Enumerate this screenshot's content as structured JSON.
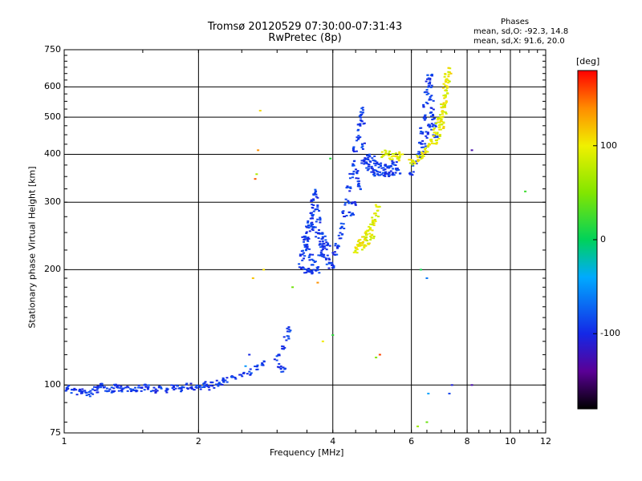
{
  "chart_data": {
    "type": "scatter",
    "title": "Tromsø 20120529 07:30:00-07:31:43",
    "subtitle": "RwPretec (8p)",
    "xlabel": "Frequency [MHz]",
    "ylabel": "Stationary phase Virtual Height [km]",
    "xscale": "log",
    "yscale": "log",
    "xlim": [
      1,
      12
    ],
    "ylim": [
      75,
      750
    ],
    "x_ticks": [
      "1",
      "2",
      "4",
      "6",
      "8",
      "10",
      "12"
    ],
    "x_tick_values": [
      1,
      2,
      4,
      6,
      8,
      10,
      12
    ],
    "y_ticks": [
      "75",
      "100",
      "200",
      "300",
      "400",
      "500",
      "600",
      "750"
    ],
    "y_tick_values": [
      75,
      100,
      200,
      300,
      400,
      500,
      600,
      750
    ],
    "grid": true,
    "info_box": {
      "heading": "Phases",
      "line1": "mean, sd,O: -92.3, 14.8",
      "line2": "mean, sd,X:  91.6, 20.0"
    },
    "colorbar": {
      "label": "[deg]",
      "range": [
        -180,
        180
      ],
      "ticks": [
        "100",
        "0",
        "-100"
      ],
      "tick_values": [
        100,
        0,
        -100
      ]
    },
    "series": [
      {
        "mode": "O",
        "phase_mean": -92.3,
        "points": [
          [
            1.02,
            98
          ],
          [
            1.05,
            97
          ],
          [
            1.08,
            96
          ],
          [
            1.1,
            96
          ],
          [
            1.13,
            95
          ],
          [
            1.16,
            96
          ],
          [
            1.18,
            97
          ],
          [
            1.2,
            98
          ],
          [
            1.22,
            99
          ],
          [
            1.25,
            98
          ],
          [
            1.28,
            97
          ],
          [
            1.3,
            99
          ],
          [
            1.33,
            98
          ],
          [
            1.36,
            97
          ],
          [
            1.4,
            98
          ],
          [
            1.44,
            97
          ],
          [
            1.48,
            98
          ],
          [
            1.52,
            99
          ],
          [
            1.56,
            98
          ],
          [
            1.6,
            97
          ],
          [
            1.65,
            98
          ],
          [
            1.7,
            97
          ],
          [
            1.75,
            98
          ],
          [
            1.8,
            99
          ],
          [
            1.85,
            98
          ],
          [
            1.9,
            99
          ],
          [
            1.95,
            98
          ],
          [
            2.0,
            99
          ],
          [
            2.05,
            100
          ],
          [
            2.1,
            99
          ],
          [
            2.15,
            100
          ],
          [
            2.2,
            101
          ],
          [
            2.25,
            102
          ],
          [
            2.3,
            103
          ],
          [
            2.4,
            104
          ],
          [
            2.5,
            106
          ],
          [
            2.6,
            108
          ],
          [
            2.7,
            111
          ],
          [
            2.8,
            114
          ],
          [
            3.0,
            118
          ],
          [
            3.1,
            125
          ],
          [
            3.15,
            132
          ],
          [
            3.2,
            140
          ],
          [
            3.05,
            112
          ],
          [
            3.1,
            110
          ],
          [
            3.4,
            205
          ],
          [
            3.42,
            215
          ],
          [
            3.45,
            225
          ],
          [
            3.48,
            235
          ],
          [
            3.5,
            245
          ],
          [
            3.52,
            255
          ],
          [
            3.55,
            265
          ],
          [
            3.58,
            275
          ],
          [
            3.6,
            285
          ],
          [
            3.62,
            300
          ],
          [
            3.64,
            320
          ],
          [
            3.66,
            310
          ],
          [
            3.7,
            290
          ],
          [
            3.72,
            270
          ],
          [
            3.75,
            250
          ],
          [
            3.78,
            235
          ],
          [
            3.8,
            225
          ],
          [
            3.85,
            215
          ],
          [
            3.9,
            210
          ],
          [
            3.95,
            205
          ],
          [
            4.0,
            204
          ],
          [
            3.5,
            200
          ],
          [
            3.55,
            198
          ],
          [
            3.6,
            197
          ],
          [
            3.7,
            200
          ],
          [
            3.45,
            240
          ],
          [
            3.5,
            230
          ],
          [
            3.6,
            260
          ],
          [
            3.65,
            255
          ],
          [
            3.7,
            245
          ],
          [
            3.8,
            240
          ],
          [
            3.85,
            230
          ],
          [
            3.9,
            235
          ],
          [
            3.75,
            220
          ],
          [
            3.58,
            215
          ],
          [
            3.62,
            208
          ],
          [
            4.05,
            220
          ],
          [
            4.1,
            230
          ],
          [
            4.15,
            245
          ],
          [
            4.2,
            260
          ],
          [
            4.25,
            280
          ],
          [
            4.3,
            300
          ],
          [
            4.35,
            325
          ],
          [
            4.4,
            350
          ],
          [
            4.45,
            380
          ],
          [
            4.5,
            410
          ],
          [
            4.55,
            440
          ],
          [
            4.6,
            470
          ],
          [
            4.62,
            500
          ],
          [
            4.64,
            520
          ],
          [
            4.66,
            480
          ],
          [
            4.7,
            420
          ],
          [
            4.75,
            390
          ],
          [
            4.8,
            375
          ],
          [
            4.85,
            365
          ],
          [
            4.9,
            360
          ],
          [
            5.0,
            358
          ],
          [
            5.1,
            357
          ],
          [
            5.2,
            356
          ],
          [
            5.3,
            357
          ],
          [
            5.4,
            358
          ],
          [
            5.5,
            360
          ],
          [
            5.6,
            362
          ],
          [
            4.5,
            360
          ],
          [
            4.55,
            340
          ],
          [
            4.6,
            330
          ],
          [
            4.7,
            385
          ],
          [
            4.8,
            395
          ],
          [
            4.9,
            390
          ],
          [
            5.0,
            380
          ],
          [
            5.1,
            375
          ],
          [
            5.2,
            370
          ],
          [
            5.3,
            372
          ],
          [
            5.4,
            375
          ],
          [
            5.5,
            378
          ],
          [
            4.45,
            300
          ],
          [
            4.4,
            280
          ],
          [
            6.0,
            360
          ],
          [
            6.1,
            380
          ],
          [
            6.2,
            400
          ],
          [
            6.3,
            430
          ],
          [
            6.35,
            460
          ],
          [
            6.4,
            500
          ],
          [
            6.45,
            540
          ],
          [
            6.5,
            580
          ],
          [
            6.55,
            620
          ],
          [
            6.6,
            640
          ],
          [
            6.62,
            600
          ],
          [
            6.65,
            560
          ],
          [
            6.7,
            520
          ],
          [
            6.75,
            480
          ],
          [
            6.8,
            450
          ],
          [
            6.5,
            450
          ],
          [
            6.4,
            420
          ],
          [
            6.3,
            400
          ],
          [
            6.6,
            470
          ],
          [
            6.7,
            500
          ]
        ]
      },
      {
        "mode": "X",
        "phase_mean": 91.6,
        "points": [
          [
            4.5,
            225
          ],
          [
            4.55,
            230
          ],
          [
            4.6,
            235
          ],
          [
            4.65,
            238
          ],
          [
            4.7,
            242
          ],
          [
            4.75,
            246
          ],
          [
            4.8,
            250
          ],
          [
            4.85,
            255
          ],
          [
            4.9,
            262
          ],
          [
            4.95,
            270
          ],
          [
            5.0,
            280
          ],
          [
            5.05,
            290
          ],
          [
            4.7,
            228
          ],
          [
            4.8,
            235
          ],
          [
            4.9,
            245
          ],
          [
            5.2,
            400
          ],
          [
            5.3,
            405
          ],
          [
            5.4,
            395
          ],
          [
            5.5,
            400
          ],
          [
            5.6,
            392
          ],
          [
            5.7,
            398
          ],
          [
            6.0,
            380
          ],
          [
            6.1,
            385
          ],
          [
            6.2,
            390
          ],
          [
            6.3,
            395
          ],
          [
            6.4,
            400
          ],
          [
            6.5,
            410
          ],
          [
            6.6,
            420
          ],
          [
            6.7,
            440
          ],
          [
            6.8,
            460
          ],
          [
            6.9,
            480
          ],
          [
            7.0,
            500
          ],
          [
            7.05,
            530
          ],
          [
            7.1,
            560
          ],
          [
            7.15,
            600
          ],
          [
            7.2,
            640
          ],
          [
            7.1,
            520
          ],
          [
            7.0,
            470
          ],
          [
            6.9,
            445
          ],
          [
            6.8,
            430
          ],
          [
            7.2,
            580
          ],
          [
            7.25,
            620
          ],
          [
            7.3,
            660
          ],
          [
            6.95,
            500
          ],
          [
            7.15,
            540
          ],
          [
            7.05,
            480
          ]
        ]
      },
      {
        "mode": "noise",
        "points": [
          [
            2.75,
            520
          ],
          [
            2.72,
            410
          ],
          [
            2.7,
            355
          ],
          [
            2.68,
            345
          ],
          [
            2.65,
            190
          ],
          [
            2.8,
            200
          ],
          [
            2.6,
            120
          ],
          [
            2.55,
            112
          ],
          [
            3.25,
            180
          ],
          [
            3.7,
            185
          ],
          [
            3.8,
            130
          ],
          [
            3.95,
            390
          ],
          [
            4.0,
            135
          ],
          [
            5.0,
            118
          ],
          [
            5.1,
            120
          ],
          [
            6.3,
            200
          ],
          [
            6.5,
            190
          ],
          [
            6.55,
            95
          ],
          [
            7.3,
            95
          ],
          [
            7.4,
            100
          ],
          [
            8.2,
            100
          ],
          [
            8.2,
            410
          ],
          [
            6.2,
            78
          ],
          [
            6.5,
            80
          ],
          [
            10.8,
            320
          ]
        ]
      }
    ]
  }
}
